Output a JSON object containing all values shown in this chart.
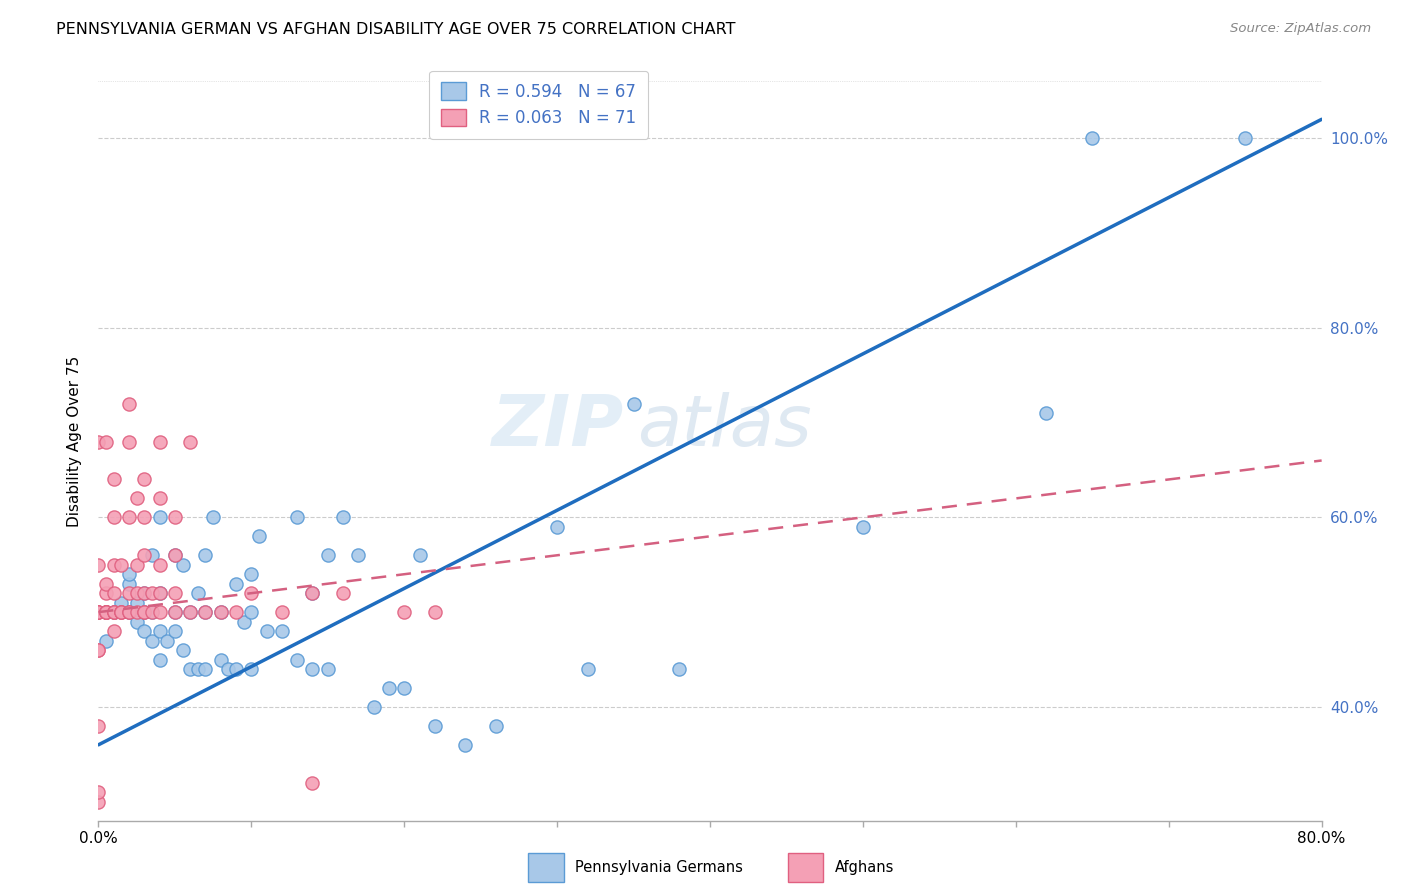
{
  "title": "PENNSYLVANIA GERMAN VS AFGHAN DISABILITY AGE OVER 75 CORRELATION CHART",
  "source": "Source: ZipAtlas.com",
  "ylabel": "Disability Age Over 75",
  "legend_blue_r": "R = 0.594",
  "legend_blue_n": "N = 67",
  "legend_pink_r": "R = 0.063",
  "legend_pink_n": "N = 71",
  "legend_label_blue": "Pennsylvania Germans",
  "legend_label_pink": "Afghans",
  "watermark_zip": "ZIP",
  "watermark_atlas": "atlas",
  "blue_color": "#a8c8e8",
  "pink_color": "#f4a0b5",
  "blue_edge_color": "#5b9bd5",
  "pink_edge_color": "#e06080",
  "blue_line_color": "#1f6dbf",
  "pink_line_color": "#d46080",
  "label_color": "#4472c4",
  "xmin": 0.0,
  "xmax": 0.8,
  "ymin": 0.28,
  "ymax": 1.08,
  "xtick_vals": [
    0.0,
    0.1,
    0.2,
    0.3,
    0.4,
    0.5,
    0.6,
    0.7,
    0.8
  ],
  "ytick_vals": [
    0.4,
    0.6,
    0.8,
    1.0
  ],
  "blue_scatter_x": [
    0.005,
    0.01,
    0.015,
    0.02,
    0.02,
    0.02,
    0.025,
    0.025,
    0.03,
    0.03,
    0.03,
    0.035,
    0.035,
    0.035,
    0.04,
    0.04,
    0.04,
    0.04,
    0.045,
    0.05,
    0.05,
    0.05,
    0.055,
    0.055,
    0.06,
    0.06,
    0.065,
    0.065,
    0.07,
    0.07,
    0.07,
    0.075,
    0.08,
    0.08,
    0.085,
    0.09,
    0.09,
    0.095,
    0.1,
    0.1,
    0.1,
    0.105,
    0.11,
    0.12,
    0.13,
    0.13,
    0.14,
    0.14,
    0.15,
    0.15,
    0.16,
    0.17,
    0.18,
    0.19,
    0.2,
    0.21,
    0.22,
    0.24,
    0.26,
    0.3,
    0.32,
    0.35,
    0.38,
    0.5,
    0.62,
    0.65,
    0.75
  ],
  "blue_scatter_y": [
    0.47,
    0.5,
    0.51,
    0.5,
    0.53,
    0.54,
    0.49,
    0.51,
    0.48,
    0.5,
    0.52,
    0.47,
    0.5,
    0.56,
    0.45,
    0.48,
    0.52,
    0.6,
    0.47,
    0.48,
    0.5,
    0.56,
    0.46,
    0.55,
    0.44,
    0.5,
    0.44,
    0.52,
    0.44,
    0.5,
    0.56,
    0.6,
    0.45,
    0.5,
    0.44,
    0.44,
    0.53,
    0.49,
    0.44,
    0.5,
    0.54,
    0.58,
    0.48,
    0.48,
    0.45,
    0.6,
    0.44,
    0.52,
    0.44,
    0.56,
    0.6,
    0.56,
    0.4,
    0.42,
    0.42,
    0.56,
    0.38,
    0.36,
    0.38,
    0.59,
    0.44,
    0.72,
    0.44,
    0.59,
    0.71,
    1.0,
    1.0
  ],
  "pink_scatter_x": [
    0.0,
    0.0,
    0.0,
    0.0,
    0.0,
    0.0,
    0.0,
    0.0,
    0.0,
    0.0,
    0.0,
    0.005,
    0.005,
    0.005,
    0.005,
    0.005,
    0.005,
    0.005,
    0.005,
    0.005,
    0.01,
    0.01,
    0.01,
    0.01,
    0.01,
    0.01,
    0.01,
    0.01,
    0.015,
    0.015,
    0.015,
    0.015,
    0.02,
    0.02,
    0.02,
    0.02,
    0.02,
    0.02,
    0.025,
    0.025,
    0.025,
    0.025,
    0.03,
    0.03,
    0.03,
    0.03,
    0.03,
    0.03,
    0.035,
    0.035,
    0.04,
    0.04,
    0.04,
    0.04,
    0.04,
    0.05,
    0.05,
    0.05,
    0.05,
    0.06,
    0.06,
    0.07,
    0.08,
    0.09,
    0.1,
    0.12,
    0.14,
    0.16,
    0.2,
    0.22,
    0.14
  ],
  "pink_scatter_y": [
    0.3,
    0.31,
    0.38,
    0.46,
    0.46,
    0.5,
    0.5,
    0.5,
    0.5,
    0.55,
    0.68,
    0.5,
    0.5,
    0.5,
    0.5,
    0.5,
    0.5,
    0.52,
    0.53,
    0.68,
    0.5,
    0.5,
    0.6,
    0.48,
    0.5,
    0.52,
    0.55,
    0.64,
    0.5,
    0.5,
    0.5,
    0.55,
    0.5,
    0.5,
    0.52,
    0.6,
    0.68,
    0.72,
    0.5,
    0.52,
    0.55,
    0.62,
    0.5,
    0.5,
    0.52,
    0.56,
    0.6,
    0.64,
    0.5,
    0.52,
    0.5,
    0.52,
    0.55,
    0.62,
    0.68,
    0.5,
    0.52,
    0.56,
    0.6,
    0.5,
    0.68,
    0.5,
    0.5,
    0.5,
    0.52,
    0.5,
    0.32,
    0.52,
    0.5,
    0.5,
    0.52
  ],
  "blue_trendline_x": [
    0.0,
    0.8
  ],
  "blue_trendline_y": [
    0.36,
    1.02
  ],
  "pink_trendline_x": [
    0.0,
    0.8
  ],
  "pink_trendline_y": [
    0.5,
    0.66
  ]
}
